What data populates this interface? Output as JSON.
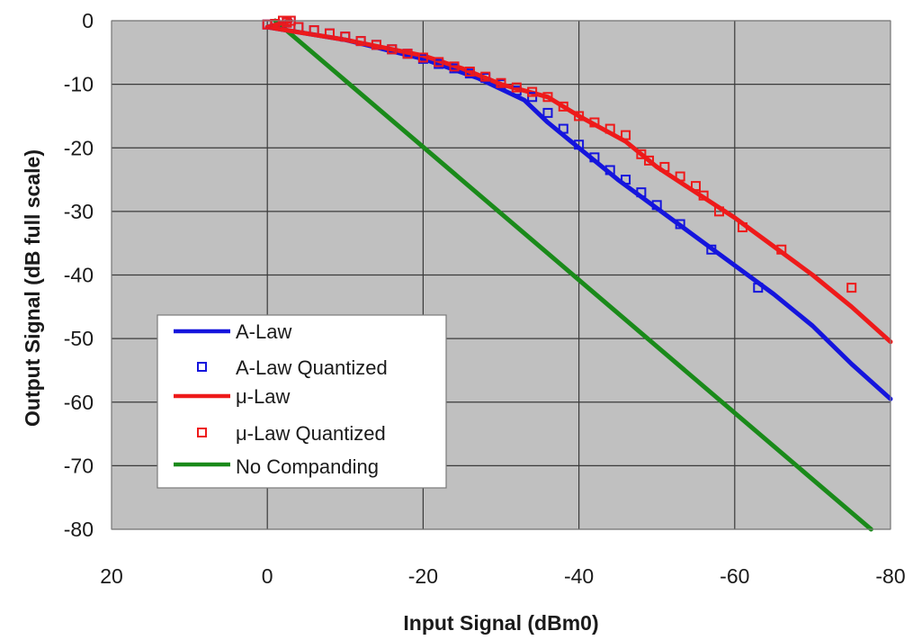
{
  "chart_data": {
    "type": "line",
    "title": "",
    "xlabel": "Input Signal (dBm0)",
    "ylabel": "Output Signal (dB full scale)",
    "xlim": [
      20,
      -80
    ],
    "ylim": [
      -80,
      0
    ],
    "x_ticks": [
      20,
      0,
      -20,
      -40,
      -60,
      -80
    ],
    "y_ticks": [
      0,
      -10,
      -20,
      -30,
      -40,
      -50,
      -60,
      -70,
      -80
    ],
    "x_tick_labels": [
      "20",
      "0",
      "-20",
      "-40",
      "-60",
      "-80"
    ],
    "y_tick_labels": [
      "0",
      "-10",
      "-20",
      "-30",
      "-40",
      "-50",
      "-60",
      "-70",
      "-80"
    ],
    "x_axis_reversed": true,
    "grid": true,
    "plot_background": "#c0c0c0",
    "legend_position": "lower-left",
    "series": [
      {
        "name": "A-Law",
        "kind": "line",
        "color": "#1515dd",
        "x": [
          -3,
          0,
          -10,
          -20,
          -27,
          -33,
          -36,
          -40,
          -45,
          -50,
          -55,
          -60,
          -65,
          -70,
          -75,
          -80
        ],
        "y": [
          0,
          -1,
          -3,
          -6,
          -9,
          -12.5,
          -16,
          -20,
          -25,
          -29.5,
          -34,
          -38.5,
          -43,
          -48,
          -54,
          -59.5
        ]
      },
      {
        "name": "A-Law Quantized",
        "kind": "markers",
        "marker": "square",
        "color": "#1515dd",
        "x": [
          -3,
          -2,
          -1,
          0,
          -2.5,
          -4,
          -6,
          -8,
          -10,
          -12,
          -14,
          -16,
          -18,
          -20,
          -22,
          -24,
          -26,
          -28,
          -30,
          -32,
          -34,
          -36,
          -38,
          -40,
          -42,
          -44,
          -46,
          -48,
          -50,
          -53,
          -57,
          -63
        ],
        "y": [
          0,
          0,
          -0.5,
          -0.6,
          -0.3,
          -1,
          -1.5,
          -2,
          -2.5,
          -3.2,
          -3.8,
          -4.5,
          -5.2,
          -6,
          -6.8,
          -7.5,
          -8.3,
          -9,
          -10,
          -11,
          -12,
          -14.5,
          -17,
          -19.5,
          -21.5,
          -23.5,
          -25,
          -27,
          -29,
          -32,
          -36,
          -42
        ]
      },
      {
        "name": "μ-Law",
        "kind": "line",
        "color": "#ee1a1a",
        "x": [
          -3,
          0,
          -10,
          -20,
          -25,
          -30,
          -36,
          -40,
          -46,
          -50,
          -55,
          -60,
          -65,
          -70,
          -75,
          -80
        ],
        "y": [
          0,
          -1,
          -3,
          -5.5,
          -7.5,
          -10,
          -12,
          -15,
          -19,
          -23,
          -27,
          -31,
          -35.5,
          -40,
          -45,
          -50.5
        ]
      },
      {
        "name": "μ-Law Quantized",
        "kind": "markers",
        "marker": "square",
        "color": "#ee1a1a",
        "x": [
          -3,
          -2,
          -1,
          0,
          -2.5,
          -4,
          -6,
          -8,
          -10,
          -12,
          -14,
          -16,
          -18,
          -20,
          -22,
          -24,
          -26,
          -28,
          -30,
          -32,
          -34,
          -36,
          -38,
          -40,
          -42,
          -44,
          -46,
          -48,
          -49,
          -51,
          -53,
          -55,
          -56,
          -58,
          -61,
          -66,
          -75
        ],
        "y": [
          0,
          0,
          -0.5,
          -0.6,
          -0.3,
          -1,
          -1.5,
          -2,
          -2.5,
          -3.2,
          -3.8,
          -4.5,
          -5.2,
          -5.8,
          -6.5,
          -7.2,
          -8,
          -8.8,
          -9.8,
          -10.5,
          -11.2,
          -12,
          -13.5,
          -15,
          -16,
          -17,
          -18,
          -21,
          -22,
          -23,
          -24.5,
          -26,
          -27.5,
          -30,
          -32.5,
          -36,
          -42
        ]
      },
      {
        "name": "No Companding",
        "kind": "line",
        "color": "#1a8a1a",
        "x": [
          -1,
          -77.5
        ],
        "y": [
          0,
          -80
        ]
      }
    ]
  }
}
